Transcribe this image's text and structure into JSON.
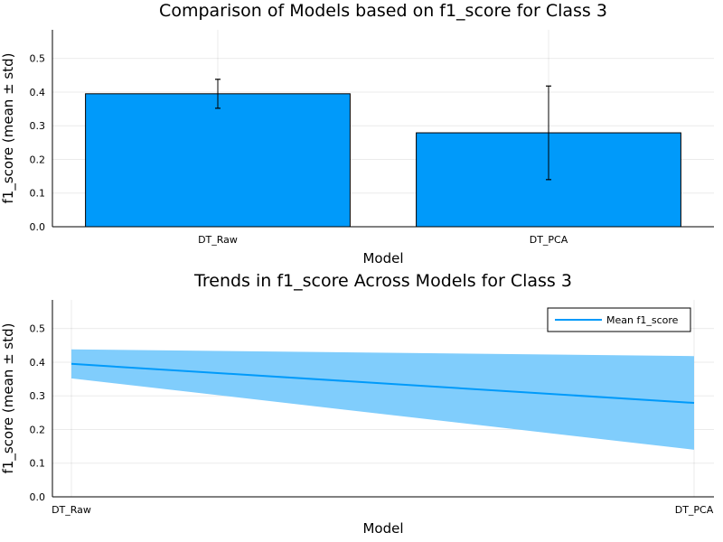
{
  "chart_data": [
    {
      "type": "bar",
      "title": "Comparison of Models based on f1_score for Class 3",
      "xlabel": "Model",
      "ylabel": "f1_score (mean ± std)",
      "categories": [
        "DT_Raw",
        "DT_PCA"
      ],
      "values": [
        0.395,
        0.279
      ],
      "error": [
        0.043,
        0.139
      ],
      "ylim": [
        0,
        0.585
      ],
      "yticks": [
        "0.0",
        "0.1",
        "0.2",
        "0.3",
        "0.4",
        "0.5"
      ],
      "grid": true,
      "bar_color": "#009AFA"
    },
    {
      "type": "line",
      "title": "Trends in f1_score Across Models for Class 3",
      "xlabel": "Model",
      "ylabel": "f1_score (mean ± std)",
      "categories": [
        "DT_Raw",
        "DT_PCA"
      ],
      "series": [
        {
          "name": "Mean f1_score",
          "values": [
            0.395,
            0.279
          ],
          "band_lower": [
            0.352,
            0.14
          ],
          "band_upper": [
            0.438,
            0.418
          ]
        }
      ],
      "ylim": [
        0,
        0.585
      ],
      "yticks": [
        "0.0",
        "0.1",
        "0.2",
        "0.3",
        "0.4",
        "0.5"
      ],
      "grid": true,
      "legend": "top-right",
      "line_color": "#009AFA",
      "band_color": "#80CDFC"
    }
  ]
}
